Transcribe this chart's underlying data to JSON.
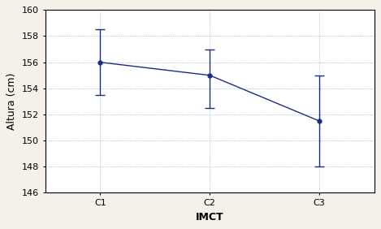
{
  "categories": [
    "C1",
    "C2",
    "C3"
  ],
  "means": [
    156.0,
    155.0,
    151.5
  ],
  "errors_upper": [
    2.5,
    2.0,
    3.5
  ],
  "errors_lower": [
    2.5,
    2.5,
    3.5
  ],
  "xlabel": "IMCT",
  "ylabel": "Altura (cm)",
  "ylim": [
    146,
    160
  ],
  "yticks": [
    146,
    148,
    150,
    152,
    154,
    156,
    158,
    160
  ],
  "line_color": "#1a2e80",
  "marker_color": "#1a2e80",
  "plot_bg_color": "#ffffff",
  "fig_bg_color": "#f5f0e8",
  "grid_color": "#a0a8c0",
  "tick_fontsize": 8,
  "label_fontsize": 9,
  "xlabel_fontsize": 9,
  "ylabel_fontsize": 9
}
